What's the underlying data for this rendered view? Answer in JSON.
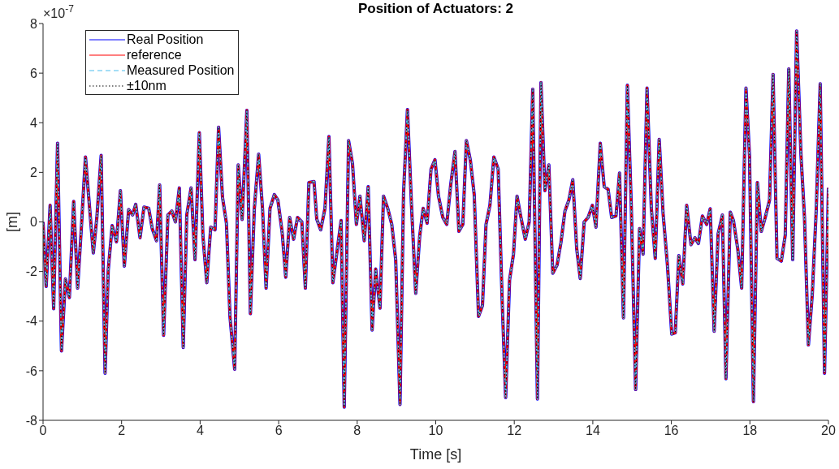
{
  "chart_data": {
    "type": "line",
    "title": "Position of Actuators: 2",
    "xlabel": "Time [s]",
    "ylabel": "[m]",
    "annotations": [
      "×10$^{-7}$"
    ],
    "x": [
      0,
      0.08,
      0.18,
      0.27,
      0.37,
      0.47,
      0.57,
      0.67,
      0.78,
      0.88,
      0.97,
      1.08,
      1.18,
      1.28,
      1.37,
      1.48,
      1.58,
      1.66,
      1.76,
      1.87,
      1.97,
      2.07,
      2.18,
      2.28,
      2.36,
      2.47,
      2.57,
      2.69,
      2.78,
      2.89,
      2.97,
      3.07,
      3.18,
      3.28,
      3.37,
      3.47,
      3.57,
      3.66,
      3.77,
      3.87,
      3.98,
      4.07,
      4.17,
      4.27,
      4.38,
      4.47,
      4.57,
      4.67,
      4.76,
      4.88,
      4.97,
      5.07,
      5.19,
      5.28,
      5.38,
      5.49,
      5.59,
      5.68,
      5.78,
      5.89,
      5.98,
      6.09,
      6.18,
      6.28,
      6.38,
      6.48,
      6.59,
      6.68,
      6.77,
      6.9,
      6.97,
      7.07,
      7.18,
      7.28,
      7.38,
      7.49,
      7.59,
      7.67,
      7.78,
      7.88,
      7.98,
      8.07,
      8.18,
      8.28,
      8.38,
      8.47,
      8.58,
      8.67,
      8.78,
      8.88,
      8.98,
      9.09,
      9.18,
      9.28,
      9.38,
      9.49,
      9.59,
      9.68,
      9.78,
      9.88,
      9.98,
      10.07,
      10.18,
      10.28,
      10.38,
      10.49,
      10.59,
      10.69,
      10.78,
      10.88,
      10.98,
      11.09,
      11.19,
      11.28,
      11.38,
      11.48,
      11.59,
      11.69,
      11.78,
      11.88,
      11.98,
      12.07,
      12.17,
      12.28,
      12.38,
      12.47,
      12.59,
      12.68,
      12.78,
      12.88,
      12.98,
      13.09,
      13.19,
      13.29,
      13.39,
      13.49,
      13.59,
      13.68,
      13.78,
      13.88,
      13.99,
      14.08,
      14.19,
      14.29,
      14.39,
      14.48,
      14.59,
      14.68,
      14.78,
      14.88,
      14.98,
      15.09,
      15.19,
      15.28,
      15.38,
      15.49,
      15.59,
      15.69,
      15.79,
      15.9,
      16.01,
      16.1,
      16.19,
      16.29,
      16.39,
      16.5,
      16.6,
      16.69,
      16.79,
      16.9,
      16.99,
      17.09,
      17.19,
      17.3,
      17.39,
      17.5,
      17.58,
      17.69,
      17.79,
      17.9,
      17.99,
      18.09,
      18.19,
      18.29,
      18.39,
      18.5,
      18.59,
      18.69,
      18.8,
      18.9,
      18.99,
      19.09,
      19.19,
      19.3,
      19.39,
      19.49,
      19.59,
      19.69,
      19.79,
      19.9,
      20
    ],
    "series": [
      {
        "name": "Real Position",
        "color": "#0000ff",
        "line_style": "solid",
        "values": [
          0,
          -2.6,
          0.67,
          -3.5,
          3.17,
          -5.2,
          -2.3,
          -3.05,
          0.83,
          -2.67,
          -0.38,
          2.62,
          0.67,
          -1.25,
          0.17,
          2.68,
          -6.1,
          -1.95,
          -0.15,
          -0.8,
          1.26,
          -1.78,
          0.5,
          0.28,
          0.71,
          -0.64,
          0.6,
          0.55,
          -0.27,
          -0.76,
          1.49,
          -4.57,
          0.28,
          0.44,
          0,
          1.37,
          -5.06,
          0.28,
          1.37,
          -1.52,
          3.6,
          -0.54,
          -2.45,
          -0.21,
          -0.32,
          3.82,
          0.99,
          -0.05,
          -3.81,
          -5.94,
          2.3,
          0.1,
          4.5,
          -3.7,
          0.53,
          2.73,
          0.5,
          -2.67,
          0.55,
          1.1,
          0.88,
          -0.43,
          -2.23,
          0.18,
          -0.7,
          0.18,
          0,
          -2.67,
          1.59,
          1.63,
          0.11,
          -0.32,
          0.55,
          3.44,
          -2.45,
          -1.14,
          0.06,
          -7.47,
          3.28,
          2.35,
          -0.1,
          1.04,
          -0.76,
          1.42,
          -4.36,
          -1.9,
          -3.48,
          1.04,
          0.53,
          -0.1,
          -1.52,
          -7.36,
          1.15,
          4.53,
          0.77,
          -2.88,
          -0.6,
          0.55,
          -0.05,
          2.13,
          2.51,
          1.04,
          0.18,
          -0.1,
          1.48,
          2.84,
          -0.38,
          -0.1,
          3.28,
          2.5,
          1.1,
          -3.81,
          -3.37,
          -0.1,
          0.67,
          2.62,
          2.13,
          -3.1,
          -7.08,
          -2.34,
          -1.3,
          1.04,
          0.18,
          -0.7,
          0,
          5.35,
          -7.14,
          5.62,
          1.26,
          2.3,
          -2.07,
          -1.74,
          -0.81,
          0.44,
          0.88,
          1.7,
          -1.08,
          -2.28,
          0,
          0.18,
          0.67,
          -0.21,
          3.17,
          1.42,
          1.31,
          0.18,
          0.24,
          1.97,
          -3.87,
          5.51,
          0.6,
          -6.76,
          -0.27,
          -1.3,
          5.4,
          0.55,
          -1.47,
          3.33,
          0.33,
          -1.74,
          -4.52,
          -4.47,
          -1.36,
          -2.5,
          0.67,
          -0.92,
          -0.64,
          -0.87,
          0.24,
          -0.1,
          0.53,
          -4.41,
          -0.49,
          0.28,
          -6.32,
          0.39,
          0.06,
          -1.08,
          -2.67,
          5.4,
          2.68,
          -7.25,
          1.59,
          -0.38,
          0.18,
          0.88,
          5.95,
          -1.47,
          -1.58,
          -0.54,
          6.17,
          -1.52,
          7.7,
          2.73,
          0.18,
          -4.96,
          -2.88,
          0.53,
          5.57,
          -6.1,
          1.37
        ]
      },
      {
        "name": "reference",
        "color": "#ff0000",
        "line_style": "solid",
        "values": [
          0,
          -2.6,
          0.67,
          -3.5,
          3.17,
          -5.2,
          -2.3,
          -3.05,
          0.83,
          -2.67,
          -0.38,
          2.62,
          0.67,
          -1.25,
          0.17,
          2.68,
          -6.1,
          -1.95,
          -0.15,
          -0.8,
          1.26,
          -1.78,
          0.5,
          0.28,
          0.71,
          -0.64,
          0.6,
          0.55,
          -0.27,
          -0.76,
          1.49,
          -4.57,
          0.28,
          0.44,
          0,
          1.37,
          -5.06,
          0.28,
          1.37,
          -1.52,
          3.6,
          -0.54,
          -2.45,
          -0.21,
          -0.32,
          3.82,
          0.99,
          -0.05,
          -3.81,
          -5.94,
          2.3,
          0.1,
          4.5,
          -3.7,
          0.53,
          2.73,
          0.5,
          -2.67,
          0.55,
          1.1,
          0.88,
          -0.43,
          -2.23,
          0.18,
          -0.7,
          0.18,
          0,
          -2.67,
          1.59,
          1.63,
          0.11,
          -0.32,
          0.55,
          3.44,
          -2.45,
          -1.14,
          0.06,
          -7.47,
          3.28,
          2.35,
          -0.1,
          1.04,
          -0.76,
          1.42,
          -4.36,
          -1.9,
          -3.48,
          1.04,
          0.53,
          -0.1,
          -1.52,
          -7.36,
          1.15,
          4.53,
          0.77,
          -2.88,
          -0.6,
          0.55,
          -0.05,
          2.13,
          2.51,
          1.04,
          0.18,
          -0.1,
          1.48,
          2.84,
          -0.38,
          -0.1,
          3.28,
          2.5,
          1.1,
          -3.81,
          -3.37,
          -0.1,
          0.67,
          2.62,
          2.13,
          -3.1,
          -7.08,
          -2.34,
          -1.3,
          1.04,
          0.18,
          -0.7,
          0,
          5.35,
          -7.14,
          5.62,
          1.26,
          2.3,
          -2.07,
          -1.74,
          -0.81,
          0.44,
          0.88,
          1.7,
          -1.08,
          -2.28,
          0,
          0.18,
          0.67,
          -0.21,
          3.17,
          1.42,
          1.31,
          0.18,
          0.24,
          1.97,
          -3.87,
          5.51,
          0.6,
          -6.76,
          -0.27,
          -1.3,
          5.4,
          0.55,
          -1.47,
          3.33,
          0.33,
          -1.74,
          -4.52,
          -4.47,
          -1.36,
          -2.5,
          0.67,
          -0.92,
          -0.64,
          -0.87,
          0.24,
          -0.1,
          0.53,
          -4.41,
          -0.49,
          0.28,
          -6.32,
          0.39,
          0.06,
          -1.08,
          -2.67,
          5.4,
          2.68,
          -7.25,
          1.59,
          -0.38,
          0.18,
          0.88,
          5.95,
          -1.47,
          -1.58,
          -0.54,
          6.17,
          -1.52,
          7.7,
          2.73,
          0.18,
          -4.96,
          -2.88,
          0.53,
          5.57,
          -6.1,
          1.37
        ]
      },
      {
        "name": "Measured Position",
        "color": "#4dbeee",
        "line_style": "dashed",
        "values": [
          0,
          -2.6,
          0.67,
          -3.5,
          3.17,
          -5.2,
          -2.3,
          -3.05,
          0.83,
          -2.67,
          -0.38,
          2.62,
          0.67,
          -1.25,
          0.17,
          2.68,
          -6.1,
          -1.95,
          -0.15,
          -0.8,
          1.26,
          -1.78,
          0.5,
          0.28,
          0.71,
          -0.64,
          0.6,
          0.55,
          -0.27,
          -0.76,
          1.49,
          -4.57,
          0.28,
          0.44,
          0,
          1.37,
          -5.06,
          0.28,
          1.37,
          -1.52,
          3.6,
          -0.54,
          -2.45,
          -0.21,
          -0.32,
          3.82,
          0.99,
          -0.05,
          -3.81,
          -5.94,
          2.3,
          0.1,
          4.5,
          -3.7,
          0.53,
          2.73,
          0.5,
          -2.67,
          0.55,
          1.1,
          0.88,
          -0.43,
          -2.23,
          0.18,
          -0.7,
          0.18,
          0,
          -2.67,
          1.59,
          1.63,
          0.11,
          -0.32,
          0.55,
          3.44,
          -2.45,
          -1.14,
          0.06,
          -7.47,
          3.28,
          2.35,
          -0.1,
          1.04,
          -0.76,
          1.42,
          -4.36,
          -1.9,
          -3.48,
          1.04,
          0.53,
          -0.1,
          -1.52,
          -7.36,
          1.15,
          4.53,
          0.77,
          -2.88,
          -0.6,
          0.55,
          -0.05,
          2.13,
          2.51,
          1.04,
          0.18,
          -0.1,
          1.48,
          2.84,
          -0.38,
          -0.1,
          3.28,
          2.5,
          1.1,
          -3.81,
          -3.37,
          -0.1,
          0.67,
          2.62,
          2.13,
          -3.1,
          -7.08,
          -2.34,
          -1.3,
          1.04,
          0.18,
          -0.7,
          0,
          5.35,
          -7.14,
          5.62,
          1.26,
          2.3,
          -2.07,
          -1.74,
          -0.81,
          0.44,
          0.88,
          1.7,
          -1.08,
          -2.28,
          0,
          0.18,
          0.67,
          -0.21,
          3.17,
          1.42,
          1.31,
          0.18,
          0.24,
          1.97,
          -3.87,
          5.51,
          0.6,
          -6.76,
          -0.27,
          -1.3,
          5.4,
          0.55,
          -1.47,
          3.33,
          0.33,
          -1.74,
          -4.52,
          -4.47,
          -1.36,
          -2.5,
          0.67,
          -0.92,
          -0.64,
          -0.87,
          0.24,
          -0.1,
          0.53,
          -4.41,
          -0.49,
          0.28,
          -6.32,
          0.39,
          0.06,
          -1.08,
          -2.67,
          5.4,
          2.68,
          -7.25,
          1.59,
          -0.38,
          0.18,
          0.88,
          5.95,
          -1.47,
          -1.58,
          -0.54,
          6.17,
          -1.52,
          7.7,
          2.73,
          0.18,
          -4.96,
          -2.88,
          0.53,
          5.57,
          -6.1,
          1.37
        ]
      },
      {
        "name": "±10nm",
        "color": "#000000",
        "line_style": "dotted",
        "values": [
          0,
          -2.6,
          0.67,
          -3.5,
          3.17,
          -5.2,
          -2.3,
          -3.05,
          0.83,
          -2.67,
          -0.38,
          2.62,
          0.67,
          -1.25,
          0.17,
          2.68,
          -6.1,
          -1.95,
          -0.15,
          -0.8,
          1.26,
          -1.78,
          0.5,
          0.28,
          0.71,
          -0.64,
          0.6,
          0.55,
          -0.27,
          -0.76,
          1.49,
          -4.57,
          0.28,
          0.44,
          0,
          1.37,
          -5.06,
          0.28,
          1.37,
          -1.52,
          3.6,
          -0.54,
          -2.45,
          -0.21,
          -0.32,
          3.82,
          0.99,
          -0.05,
          -3.81,
          -5.94,
          2.3,
          0.1,
          4.5,
          -3.7,
          0.53,
          2.73,
          0.5,
          -2.67,
          0.55,
          1.1,
          0.88,
          -0.43,
          -2.23,
          0.18,
          -0.7,
          0.18,
          0,
          -2.67,
          1.59,
          1.63,
          0.11,
          -0.32,
          0.55,
          3.44,
          -2.45,
          -1.14,
          0.06,
          -7.47,
          3.28,
          2.35,
          -0.1,
          1.04,
          -0.76,
          1.42,
          -4.36,
          -1.9,
          -3.48,
          1.04,
          0.53,
          -0.1,
          -1.52,
          -7.36,
          1.15,
          4.53,
          0.77,
          -2.88,
          -0.6,
          0.55,
          -0.05,
          2.13,
          2.51,
          1.04,
          0.18,
          -0.1,
          1.48,
          2.84,
          -0.38,
          -0.1,
          3.28,
          2.5,
          1.1,
          -3.81,
          -3.37,
          -0.1,
          0.67,
          2.62,
          2.13,
          -3.1,
          -7.08,
          -2.34,
          -1.3,
          1.04,
          0.18,
          -0.7,
          0,
          5.35,
          -7.14,
          5.62,
          1.26,
          2.3,
          -2.07,
          -1.74,
          -0.81,
          0.44,
          0.88,
          1.7,
          -1.08,
          -2.28,
          0,
          0.18,
          0.67,
          -0.21,
          3.17,
          1.42,
          1.31,
          0.18,
          0.24,
          1.97,
          -3.87,
          5.51,
          0.6,
          -6.76,
          -0.27,
          -1.3,
          5.4,
          0.55,
          -1.47,
          3.33,
          0.33,
          -1.74,
          -4.52,
          -4.47,
          -1.36,
          -2.5,
          0.67,
          -0.92,
          -0.64,
          -0.87,
          0.24,
          -0.1,
          0.53,
          -4.41,
          -0.49,
          0.28,
          -6.32,
          0.39,
          0.06,
          -1.08,
          -2.67,
          5.4,
          2.68,
          -7.25,
          1.59,
          -0.38,
          0.18,
          0.88,
          5.95,
          -1.47,
          -1.58,
          -0.54,
          6.17,
          -1.52,
          7.7,
          2.73,
          0.18,
          -4.96,
          -2.88,
          0.53,
          5.57,
          -6.1,
          1.37
        ]
      }
    ],
    "xlim": [
      0,
      20
    ],
    "xticks": [
      0,
      2,
      4,
      6,
      8,
      10,
      12,
      14,
      16,
      18,
      20
    ],
    "ylim": [
      -8,
      8
    ],
    "yticks": [
      -8,
      -6,
      -4,
      -2,
      0,
      2,
      4,
      6,
      8
    ],
    "grid": false,
    "legend": "top left"
  }
}
